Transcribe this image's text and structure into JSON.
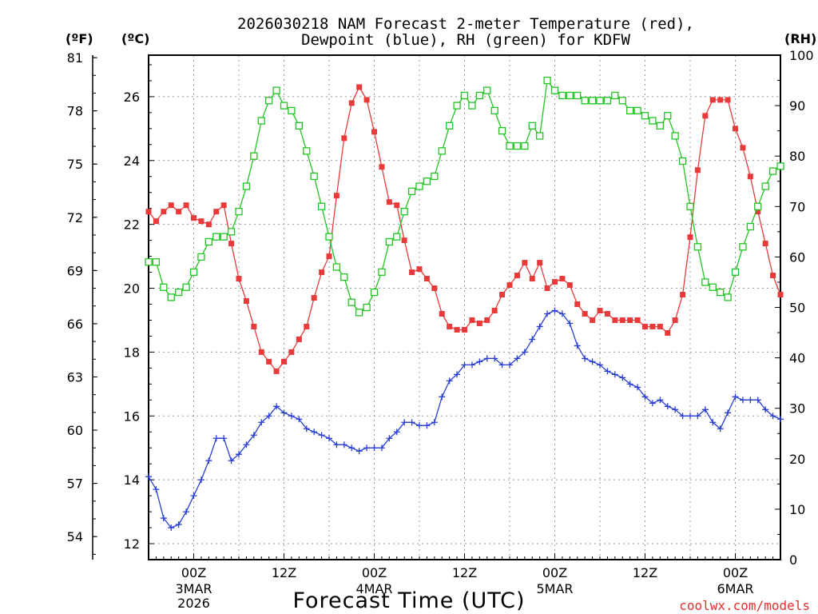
{
  "chart_data": {
    "type": "line",
    "title": [
      "2026030218 NAM Forecast 2-meter Temperature (red),",
      "Dewpoint (blue), RH (green) for KDFW"
    ],
    "xlabel": "Forecast Time (UTC)",
    "watermark": "coolwx.com/models",
    "units": {
      "f": "(ºF)",
      "c": "(ºC)",
      "rh": "(RH)"
    },
    "x_hours_range": [
      -6,
      78
    ],
    "ylim_c": [
      11.5,
      27.3
    ],
    "ylim_rh": [
      0,
      100
    ],
    "yticks_f": [
      "54",
      "57",
      "60",
      "63",
      "66",
      "69",
      "72",
      "75",
      "78",
      "81"
    ],
    "yticks_c": [
      "12",
      "14",
      "16",
      "18",
      "20",
      "22",
      "24",
      "26"
    ],
    "yticks_rh": [
      "0",
      "10",
      "20",
      "30",
      "40",
      "50",
      "60",
      "70",
      "80",
      "90",
      "100"
    ],
    "x_ticks": [
      {
        "hour": 0,
        "label": "00Z",
        "sub": [
          "3MAR",
          "2026"
        ]
      },
      {
        "hour": 12,
        "label": "12Z",
        "sub": []
      },
      {
        "hour": 24,
        "label": "00Z",
        "sub": [
          "4MAR"
        ]
      },
      {
        "hour": 36,
        "label": "12Z",
        "sub": []
      },
      {
        "hour": 48,
        "label": "00Z",
        "sub": [
          "5MAR"
        ]
      },
      {
        "hour": 60,
        "label": "12Z",
        "sub": []
      },
      {
        "hour": 72,
        "label": "00Z",
        "sub": [
          "6MAR"
        ]
      }
    ],
    "series": [
      {
        "name": "Temperature",
        "unit": "C",
        "color": "#e83a3a",
        "marker": "square-filled",
        "x": [
          -6,
          -5,
          -4,
          -3,
          -2,
          -1,
          0,
          1,
          2,
          3,
          4,
          5,
          6,
          7,
          8,
          9,
          10,
          11,
          12,
          13,
          14,
          15,
          16,
          17,
          18,
          19,
          20,
          21,
          22,
          23,
          24,
          25,
          26,
          27,
          28,
          29,
          30,
          31,
          32,
          33,
          34,
          35,
          36,
          37,
          38,
          39,
          40,
          41,
          42,
          43,
          44,
          45,
          46,
          47,
          48,
          49,
          50,
          51,
          52,
          53,
          54,
          55,
          56,
          57,
          58,
          59,
          60,
          61,
          62,
          63,
          64,
          65,
          66,
          67,
          68,
          69,
          70,
          71,
          72,
          73,
          74,
          75,
          76,
          77,
          78
        ],
        "values": [
          22.4,
          22.1,
          22.4,
          22.6,
          22.4,
          22.6,
          22.2,
          22.1,
          22.0,
          22.4,
          22.6,
          21.4,
          20.3,
          19.6,
          18.8,
          18.0,
          17.7,
          17.4,
          17.7,
          18.0,
          18.4,
          18.8,
          19.7,
          20.5,
          21.0,
          22.9,
          24.7,
          25.8,
          26.3,
          25.9,
          24.9,
          23.8,
          22.7,
          22.6,
          21.5,
          20.5,
          20.6,
          20.3,
          20.0,
          19.2,
          18.8,
          18.7,
          18.7,
          19.0,
          18.9,
          19.0,
          19.3,
          19.8,
          20.1,
          20.4,
          20.8,
          20.3,
          20.8,
          20.0,
          20.2,
          20.3,
          20.1,
          19.5,
          19.2,
          19.0,
          19.3,
          19.2,
          19.0,
          19.0,
          19.0,
          19.0,
          18.8,
          18.8,
          18.8,
          18.6,
          19.0,
          19.8,
          21.6,
          23.7,
          25.4,
          25.9,
          25.9,
          25.9,
          25.0,
          24.4,
          23.5,
          22.4,
          21.4,
          20.4,
          19.8
        ]
      },
      {
        "name": "Dewpoint",
        "unit": "C",
        "color": "#2a3fd6",
        "marker": "plus",
        "x": [
          -6,
          -5,
          -4,
          -3,
          -2,
          -1,
          0,
          1,
          2,
          3,
          4,
          5,
          6,
          7,
          8,
          9,
          10,
          11,
          12,
          13,
          14,
          15,
          16,
          17,
          18,
          19,
          20,
          21,
          22,
          23,
          24,
          25,
          26,
          27,
          28,
          29,
          30,
          31,
          32,
          33,
          34,
          35,
          36,
          37,
          38,
          39,
          40,
          41,
          42,
          43,
          44,
          45,
          46,
          47,
          48,
          49,
          50,
          51,
          52,
          53,
          54,
          55,
          56,
          57,
          58,
          59,
          60,
          61,
          62,
          63,
          64,
          65,
          66,
          67,
          68,
          69,
          70,
          71,
          72,
          73,
          74,
          75,
          76,
          77,
          78
        ],
        "values": [
          14.1,
          13.7,
          12.8,
          12.5,
          12.6,
          13.0,
          13.5,
          14.0,
          14.6,
          15.3,
          15.3,
          14.6,
          14.8,
          15.1,
          15.4,
          15.8,
          16.0,
          16.3,
          16.1,
          16.0,
          15.9,
          15.6,
          15.5,
          15.4,
          15.3,
          15.1,
          15.1,
          15.0,
          14.9,
          15.0,
          15.0,
          15.0,
          15.3,
          15.5,
          15.8,
          15.8,
          15.7,
          15.7,
          15.8,
          16.6,
          17.1,
          17.3,
          17.6,
          17.6,
          17.7,
          17.8,
          17.8,
          17.6,
          17.6,
          17.8,
          18.0,
          18.4,
          18.8,
          19.2,
          19.3,
          19.2,
          18.9,
          18.2,
          17.8,
          17.7,
          17.6,
          17.4,
          17.3,
          17.2,
          17.0,
          16.9,
          16.6,
          16.4,
          16.5,
          16.3,
          16.2,
          16.0,
          16.0,
          16.0,
          16.2,
          15.8,
          15.6,
          16.1,
          16.6,
          16.5,
          16.5,
          16.5,
          16.2,
          16.0,
          15.9
        ]
      },
      {
        "name": "Relative Humidity",
        "unit": "%",
        "color": "#22c422",
        "marker": "square-open",
        "x": [
          -6,
          -5,
          -4,
          -3,
          -2,
          -1,
          0,
          1,
          2,
          3,
          4,
          5,
          6,
          7,
          8,
          9,
          10,
          11,
          12,
          13,
          14,
          15,
          16,
          17,
          18,
          19,
          20,
          21,
          22,
          23,
          24,
          25,
          26,
          27,
          28,
          29,
          30,
          31,
          32,
          33,
          34,
          35,
          36,
          37,
          38,
          39,
          40,
          41,
          42,
          43,
          44,
          45,
          46,
          47,
          48,
          49,
          50,
          51,
          52,
          53,
          54,
          55,
          56,
          57,
          58,
          59,
          60,
          61,
          62,
          63,
          64,
          65,
          66,
          67,
          68,
          69,
          70,
          71,
          72,
          73,
          74,
          75,
          76,
          77,
          78
        ],
        "values": [
          59,
          59,
          54,
          52,
          53,
          54,
          57,
          60,
          63,
          64,
          64,
          65,
          69,
          74,
          80,
          87,
          91,
          93,
          90,
          89,
          86,
          81,
          76,
          70,
          64,
          58,
          56,
          51,
          49,
          50,
          53,
          57,
          63,
          64,
          69,
          73,
          74,
          75,
          76,
          81,
          86,
          90,
          92,
          90,
          92,
          93,
          89,
          85,
          82,
          82,
          82,
          86,
          84,
          95,
          93,
          92,
          92,
          92,
          91,
          91,
          91,
          91,
          92,
          91,
          89,
          89,
          88,
          87,
          86,
          88,
          84,
          79,
          70,
          62,
          55,
          54,
          53,
          52,
          57,
          62,
          66,
          70,
          74,
          77,
          78
        ]
      }
    ]
  }
}
